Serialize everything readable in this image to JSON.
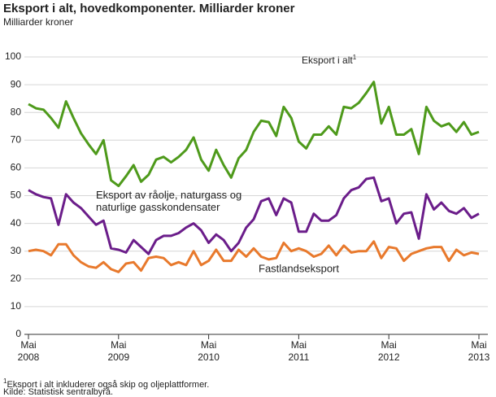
{
  "chart_data": {
    "type": "line",
    "title": "Eksport i alt, hovedkomponenter. Milliarder kroner",
    "y_label": "Milliarder kroner",
    "categories": [
      "Mai 2008",
      null,
      null,
      null,
      null,
      null,
      null,
      null,
      null,
      null,
      null,
      null,
      "Mai 2009",
      null,
      null,
      null,
      null,
      null,
      null,
      null,
      null,
      null,
      null,
      null,
      "Mai 2010",
      null,
      null,
      null,
      null,
      null,
      null,
      null,
      null,
      null,
      null,
      null,
      "Mai 2011",
      null,
      null,
      null,
      null,
      null,
      null,
      null,
      null,
      null,
      null,
      null,
      "Mai 2012",
      null,
      null,
      null,
      null,
      null,
      null,
      null,
      null,
      null,
      null,
      null,
      "Mai 2013"
    ],
    "ylim": [
      0,
      100
    ],
    "yticks": [
      0,
      10,
      20,
      30,
      40,
      50,
      60,
      70,
      80,
      90,
      100
    ],
    "grid": true,
    "series": [
      {
        "name": "Eksport i alt",
        "footnote_mark": "1",
        "color": "#4e9a1b",
        "values": [
          83,
          81.5,
          81,
          78,
          74.5,
          84,
          78,
          72.5,
          68.5,
          65,
          70,
          55.5,
          53.5,
          57,
          61,
          55,
          57.5,
          63,
          64,
          62,
          64,
          66.5,
          71,
          63,
          59,
          66.5,
          61,
          56.5,
          63.5,
          66.5,
          73,
          77,
          76.5,
          71.5,
          82,
          78,
          69.5,
          67,
          72,
          72,
          75,
          72,
          82,
          81.5,
          83.5,
          87,
          91,
          76,
          82,
          72,
          72,
          74,
          65,
          82,
          77,
          75,
          76,
          73,
          76.5,
          72,
          73
        ]
      },
      {
        "name": "Eksport av råolje, naturgass og naturlige gasskondensater",
        "color": "#6b1d8a",
        "values": [
          52,
          50.5,
          49.5,
          49,
          39.5,
          50.5,
          47.5,
          45.5,
          42.5,
          39.5,
          41,
          31,
          30.5,
          29.5,
          34,
          31.5,
          29,
          34,
          35.5,
          35.5,
          36.5,
          38.5,
          40,
          37.5,
          33,
          36,
          34,
          30,
          33,
          38.5,
          41.5,
          48,
          49,
          43,
          49,
          47.5,
          37,
          37,
          43.5,
          41,
          41,
          43,
          49,
          52,
          53,
          56,
          56.5,
          48,
          49,
          40,
          43.5,
          44,
          34.5,
          50.5,
          45,
          47.5,
          44.5,
          43.5,
          45.5,
          42,
          43.5
        ]
      },
      {
        "name": "Fastlandseksport",
        "color": "#e8792c",
        "values": [
          30,
          30.5,
          30,
          28.5,
          32.5,
          32.5,
          28.5,
          26,
          24.5,
          24,
          26,
          23.5,
          22.5,
          25.5,
          26,
          23,
          27.5,
          28,
          27.5,
          25,
          26,
          25,
          30,
          25,
          26.5,
          30.5,
          26.5,
          26.5,
          30.5,
          28,
          31,
          28,
          27,
          27.5,
          33,
          30,
          31,
          30,
          28,
          29,
          32,
          28.5,
          32,
          29.5,
          30,
          30,
          33.5,
          27.5,
          31.5,
          31,
          26.5,
          29,
          30,
          31,
          31.5,
          31.5,
          26.5,
          30.5,
          28.5,
          29.5,
          29
        ]
      }
    ],
    "footnote": {
      "mark": "1",
      "text": "Eksport i alt inkluderer også skip og oljeplattformer."
    },
    "source": "Kilde: Statistisk sentralbyrå."
  }
}
